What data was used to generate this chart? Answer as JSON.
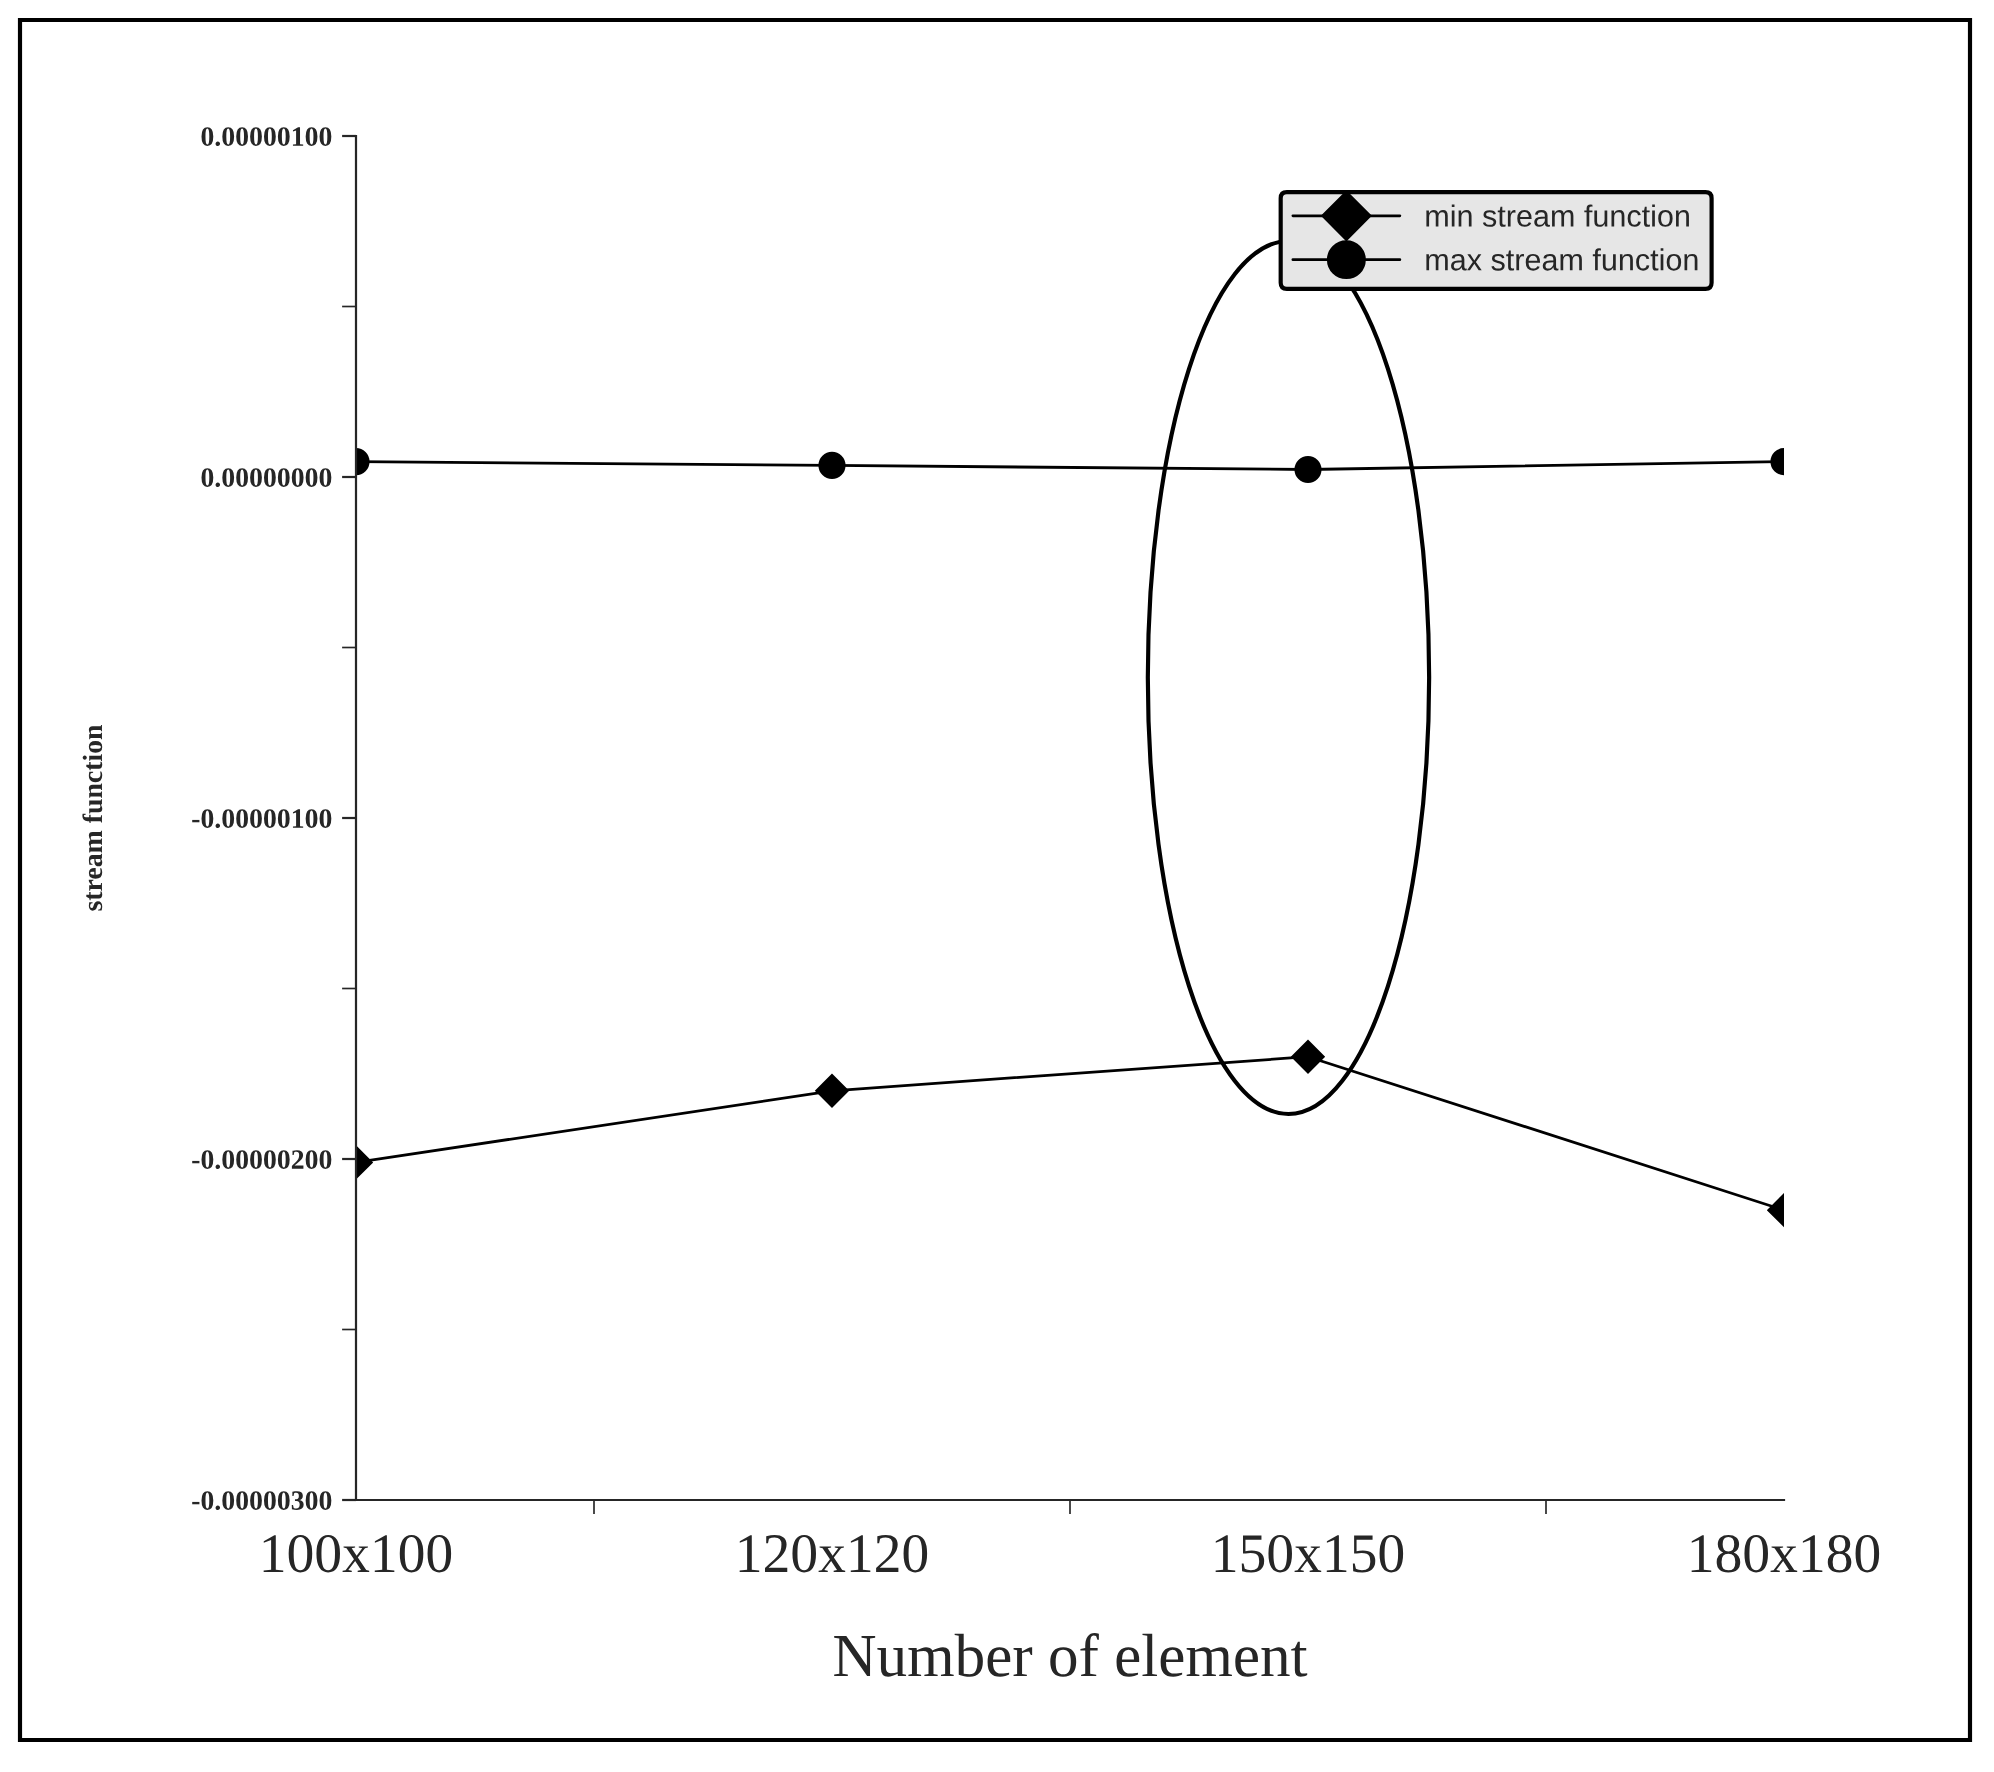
{
  "chart_data": {
    "type": "line",
    "xlabel": "Number of element",
    "ylabel": "stream function",
    "categories": [
      "100x100",
      "120x120",
      "150x150",
      "180x180"
    ],
    "series": [
      {
        "name": "min stream function",
        "color": "#000000",
        "marker": "diamond",
        "values": [
          -2.01e-06,
          -1.8e-06,
          -1.7e-06,
          -2.15e-06
        ]
      },
      {
        "name": "max stream function",
        "color": "#000000",
        "marker": "circle",
        "values": [
          4.5e-08,
          3.4e-08,
          2.2e-08,
          4.5e-08
        ]
      }
    ],
    "ylim": [
      -3e-06,
      1e-06
    ],
    "yticks": [
      {
        "value": -3e-06,
        "label": "-0.00000300"
      },
      {
        "value": -2e-06,
        "label": "-0.00000200"
      },
      {
        "value": -1e-06,
        "label": "-0.00000100"
      },
      {
        "value": 0,
        "label": "0.00000000"
      },
      {
        "value": 1e-06,
        "label": "0.00000100"
      }
    ],
    "grid": false,
    "legend": "top right",
    "line_style": "solid"
  }
}
